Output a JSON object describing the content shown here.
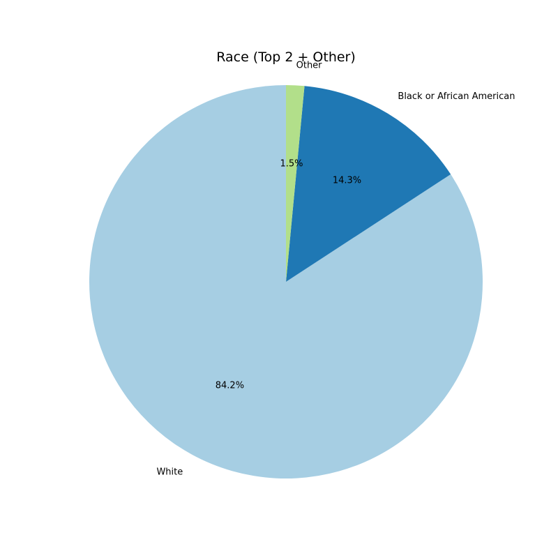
{
  "chart_data": {
    "type": "pie",
    "title": "Race (Top 2 + Other)",
    "slices": [
      {
        "label": "White",
        "value": 84.2,
        "pct_label": "84.2%",
        "color": "#a6cee3"
      },
      {
        "label": "Black or African American",
        "value": 14.3,
        "pct_label": "14.3%",
        "color": "#1f78b4"
      },
      {
        "label": "Other",
        "value": 1.5,
        "pct_label": "1.5%",
        "color": "#b2df8a"
      }
    ],
    "start_angle_deg": 90,
    "direction": "counterclockwise"
  }
}
